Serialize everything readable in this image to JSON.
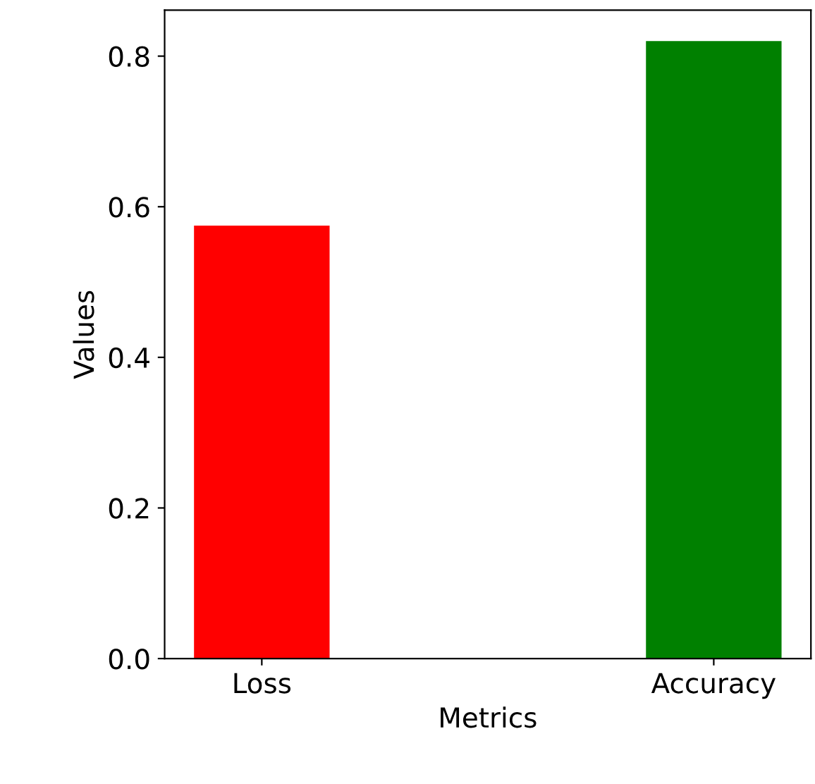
{
  "chart_data": {
    "type": "bar",
    "xlabel": "Metrics",
    "ylabel": "Values",
    "categories": [
      "Loss",
      "Accuracy"
    ],
    "values": [
      0.575,
      0.82
    ],
    "colors": [
      "#ff0000",
      "#008000"
    ],
    "ylim": [
      0,
      0.861
    ],
    "yticks": [
      {
        "value": 0,
        "label": "0.0"
      },
      0.2,
      0.4,
      0.6,
      0.8
    ],
    "grid": false,
    "legend": false
  }
}
